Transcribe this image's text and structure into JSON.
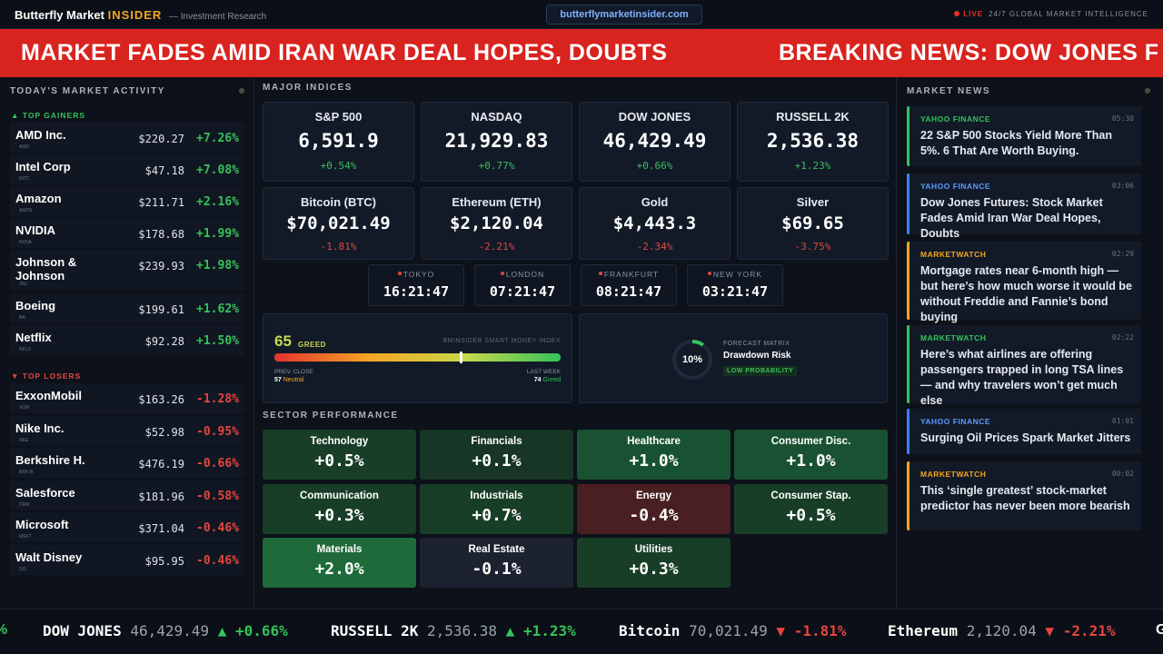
{
  "header": {
    "brand_main": "Butterfly Market",
    "brand_accent": "INSIDER",
    "brand_sub": "— Investment Research",
    "url": "butterflymarketinsider.com",
    "live_label": "LIVE",
    "live_tagline": "24/7 GLOBAL MARKET INTELLIGENCE"
  },
  "banner": {
    "headline": "MARKET FADES AMID IRAN WAR DEAL HOPES, DOUBTS",
    "next": "BREAKING NEWS: DOW JONES F"
  },
  "left": {
    "title": "TODAY'S MARKET ACTIVITY",
    "gainers_label": "▲ TOP GAINERS",
    "losers_label": "▼ TOP LOSERS",
    "gainers": [
      {
        "name": "AMD Inc.",
        "ticker": "AMD",
        "price": "$220.27",
        "change": "+7.26%"
      },
      {
        "name": "Intel Corp",
        "ticker": "INTC",
        "price": "$47.18",
        "change": "+7.08%"
      },
      {
        "name": "Amazon",
        "ticker": "AMZN",
        "price": "$211.71",
        "change": "+2.16%"
      },
      {
        "name": "NVIDIA",
        "ticker": "NVDA",
        "price": "$178.68",
        "change": "+1.99%"
      },
      {
        "name": "Johnson & Johnson",
        "ticker": "JNJ",
        "price": "$239.93",
        "change": "+1.98%"
      },
      {
        "name": "Boeing",
        "ticker": "BA",
        "price": "$199.61",
        "change": "+1.62%"
      },
      {
        "name": "Netflix",
        "ticker": "NFLX",
        "price": "$92.28",
        "change": "+1.50%"
      }
    ],
    "losers": [
      {
        "name": "ExxonMobil",
        "ticker": "XOM",
        "price": "$163.26",
        "change": "-1.28%"
      },
      {
        "name": "Nike Inc.",
        "ticker": "NKE",
        "price": "$52.98",
        "change": "-0.95%"
      },
      {
        "name": "Berkshire H.",
        "ticker": "BRK-B",
        "price": "$476.19",
        "change": "-0.66%"
      },
      {
        "name": "Salesforce",
        "ticker": "CRM",
        "price": "$181.96",
        "change": "-0.58%"
      },
      {
        "name": "Microsoft",
        "ticker": "MSFT",
        "price": "$371.04",
        "change": "-0.46%"
      },
      {
        "name": "Walt Disney",
        "ticker": "DIS",
        "price": "$95.95",
        "change": "-0.46%"
      }
    ]
  },
  "indices": {
    "title": "MAJOR INDICES",
    "items": [
      {
        "name": "S&P 500",
        "value": "6,591.9",
        "change": "+0.54%",
        "dir": "up"
      },
      {
        "name": "NASDAQ",
        "value": "21,929.83",
        "change": "+0.77%",
        "dir": "up"
      },
      {
        "name": "DOW JONES",
        "value": "46,429.49",
        "change": "+0.66%",
        "dir": "up"
      },
      {
        "name": "RUSSELL 2K",
        "value": "2,536.38",
        "change": "+1.23%",
        "dir": "up"
      },
      {
        "name": "Bitcoin (BTC)",
        "value": "$70,021.49",
        "change": "-1.81%",
        "dir": "dn"
      },
      {
        "name": "Ethereum (ETH)",
        "value": "$2,120.04",
        "change": "-2.21%",
        "dir": "dn"
      },
      {
        "name": "Gold",
        "value": "$4,443.3",
        "change": "-2.34%",
        "dir": "dn"
      },
      {
        "name": "Silver",
        "value": "$69.65",
        "change": "-3.75%",
        "dir": "dn"
      }
    ]
  },
  "clocks": [
    {
      "city": "TOKYO",
      "time": "16:21:47"
    },
    {
      "city": "LONDON",
      "time": "07:21:47"
    },
    {
      "city": "FRANKFURT",
      "time": "08:21:47"
    },
    {
      "city": "NEW YORK",
      "time": "03:21:47"
    }
  ],
  "sentiment": {
    "score": "65",
    "level": 0.65,
    "label": "GREED",
    "index_name": "BMINSIDER SMART MONEY INDEX",
    "prev_label": "PREV. CLOSE",
    "prev_value": "57",
    "prev_text": "Neutral",
    "week_label": "LAST WEEK",
    "week_value": "74",
    "week_text": "Greed"
  },
  "forecast": {
    "percent": "10%",
    "level": 0.1,
    "title": "FORECAST MATRIX",
    "name": "Drawdown Risk",
    "badge": "LOW PROBABILITY"
  },
  "sectors": {
    "title": "SECTOR PERFORMANCE",
    "items": [
      {
        "name": "Technology",
        "value": "+0.5%",
        "dir": "up"
      },
      {
        "name": "Financials",
        "value": "+0.1%",
        "dir": "up"
      },
      {
        "name": "Healthcare",
        "value": "+1.0%",
        "dir": "up"
      },
      {
        "name": "Consumer Disc.",
        "value": "+1.0%",
        "dir": "up"
      },
      {
        "name": "Communication",
        "value": "+0.3%",
        "dir": "up"
      },
      {
        "name": "Industrials",
        "value": "+0.7%",
        "dir": "up"
      },
      {
        "name": "Energy",
        "value": "-0.4%",
        "dir": "dn"
      },
      {
        "name": "Consumer Stap.",
        "value": "+0.5%",
        "dir": "up"
      },
      {
        "name": "Materials",
        "value": "+2.0%",
        "dir": "up"
      },
      {
        "name": "Real Estate",
        "value": "-0.1%",
        "dir": "flat"
      },
      {
        "name": "Utilities",
        "value": "+0.3%",
        "dir": "up"
      }
    ]
  },
  "news": {
    "title": "MARKET NEWS",
    "items": [
      {
        "source": "YAHOO FINANCE",
        "time": "05:30",
        "headline": "22 S&P 500 Stocks Yield More Than 5%. 6 That Are Worth Buying.",
        "color": "#35c25a",
        "src_color": "#35c25a"
      },
      {
        "source": "YAHOO FINANCE",
        "time": "03:06",
        "headline": "Dow Jones Futures: Stock Market Fades Amid Iran War Deal Hopes, Doubts",
        "color": "#3b82f6",
        "src_color": "#5b9bff"
      },
      {
        "source": "MARKETWATCH",
        "time": "02:29",
        "headline": "Mortgage rates near 6-month high — but here’s how much worse it would be without Freddie and Fannie’s bond buying",
        "color": "#f5a623",
        "src_color": "#f5a623"
      },
      {
        "source": "MARKETWATCH",
        "time": "02:22",
        "headline": "Here’s what airlines are offering passengers trapped in long TSA lines — and why travelers won’t get much else",
        "color": "#35c25a",
        "src_color": "#35c25a"
      },
      {
        "source": "YAHOO FINANCE",
        "time": "01:01",
        "headline": "Surging Oil Prices Spark Market Jitters",
        "color": "#3b82f6",
        "src_color": "#5b9bff"
      },
      {
        "source": "MARKETWATCH",
        "time": "00:02",
        "headline": "This ‘single greatest’ stock-market predictor has never been more bearish",
        "color": "#f5a623",
        "src_color": "#f5a623"
      }
    ]
  },
  "ticker": {
    "lead": "%",
    "items": [
      {
        "symbol": "DOW JONES",
        "value": "46,429.49",
        "arrow": "▲",
        "change": "+0.66%",
        "dir": "up"
      },
      {
        "symbol": "RUSSELL 2K",
        "value": "2,536.38",
        "arrow": "▲",
        "change": "+1.23%",
        "dir": "up"
      },
      {
        "symbol": "Bitcoin",
        "value": "70,021.49",
        "arrow": "▼",
        "change": "-1.81%",
        "dir": "dn"
      },
      {
        "symbol": "Ethereum",
        "value": "2,120.04",
        "arrow": "▼",
        "change": "-2.21%",
        "dir": "dn"
      }
    ],
    "tail": "G"
  }
}
